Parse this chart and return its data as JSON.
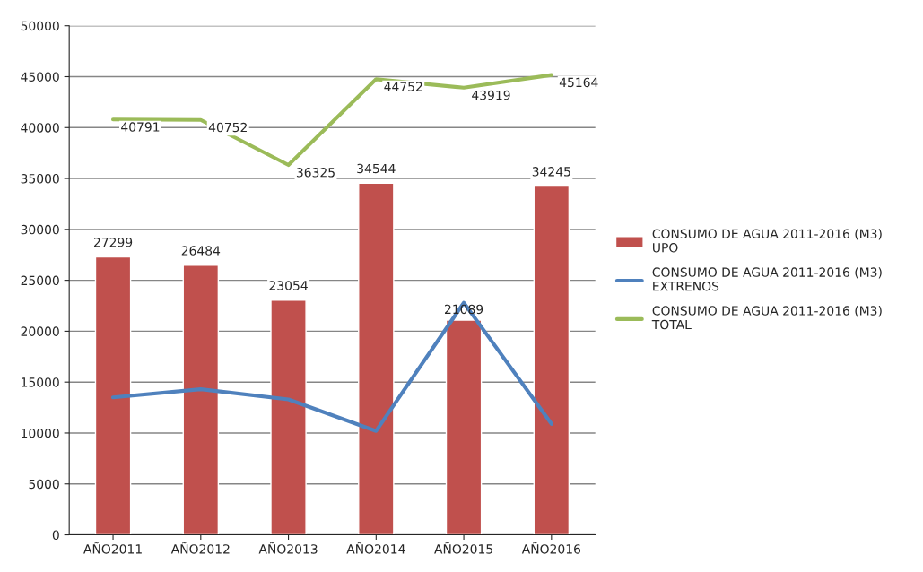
{
  "chart_data": {
    "type": "bar",
    "categories": [
      "AÑO2011",
      "AÑO2012",
      "AÑO2013",
      "AÑO2014",
      "AÑO2015",
      "AÑO2016"
    ],
    "series": [
      {
        "name": "CONSUMO DE AGUA 2011-2016 (M3) UPO",
        "type": "bar",
        "color": "#c0504d",
        "values": [
          27299,
          26484,
          23054,
          34544,
          21089,
          34245
        ],
        "value_labels": [
          "27299",
          "26484",
          "23054",
          "34544",
          "21089",
          "34245"
        ]
      },
      {
        "name": "CONSUMO DE AGUA 2011-2016 (M3) EXTRENOS",
        "type": "line",
        "color": "#4f81bd",
        "values": [
          13500,
          14300,
          13300,
          10200,
          22800,
          10900
        ]
      },
      {
        "name": "CONSUMO DE AGUA 2011-2016 (M3) TOTAL",
        "type": "line",
        "color": "#9bbb59",
        "values": [
          40791,
          40752,
          36325,
          44752,
          43919,
          45164
        ],
        "value_labels": [
          "40791",
          "40752",
          "36325",
          "44752",
          "43919",
          "45164"
        ]
      }
    ],
    "ylim": [
      0,
      50000
    ],
    "yticks": [
      0,
      5000,
      10000,
      15000,
      20000,
      25000,
      30000,
      35000,
      40000,
      45000,
      50000
    ],
    "grid": "y",
    "legend": "right"
  }
}
